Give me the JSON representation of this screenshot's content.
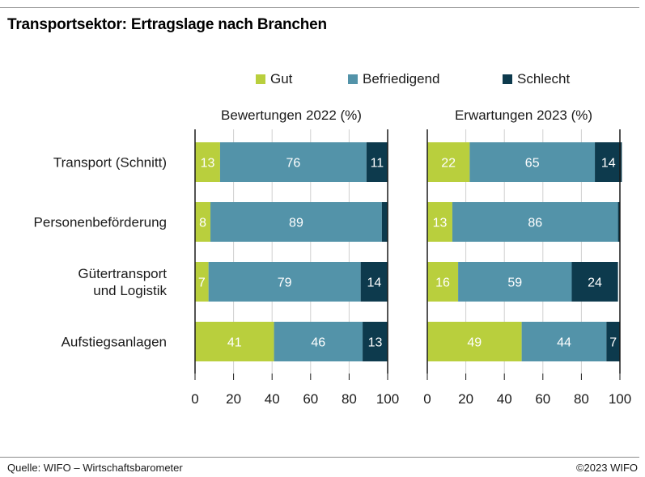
{
  "title": "Transportsektor: Ertragslage nach Branchen",
  "legend": [
    {
      "label": "Gut",
      "color": "#b9cf3d"
    },
    {
      "label": "Befriedigend",
      "color": "#5393a9"
    },
    {
      "label": "Schlecht",
      "color": "#0d3a4d"
    }
  ],
  "footer": {
    "source": "Quelle: WIFO – Wirtschaftsbarometer",
    "copyright": "©2023 WIFO"
  },
  "chart_data": [
    {
      "type": "bar",
      "orientation": "horizontal",
      "stacked": true,
      "title": "Bewertungen 2022 (%)",
      "categories": [
        {
          "lines": [
            "Transport (Schnitt)"
          ]
        },
        {
          "lines": [
            "Personenbeförderung"
          ]
        },
        {
          "lines": [
            "Gütertransport",
            "und Logistik"
          ]
        },
        {
          "lines": [
            "Aufstiegsanlagen"
          ]
        }
      ],
      "series": [
        {
          "name": "Gut",
          "values": [
            13,
            8,
            7,
            41
          ],
          "labels": [
            "13",
            "8",
            "7",
            "41"
          ]
        },
        {
          "name": "Befriedigend",
          "values": [
            76,
            89,
            79,
            46
          ],
          "labels": [
            "76",
            "89",
            "79",
            "46"
          ]
        },
        {
          "name": "Schlecht",
          "values": [
            11,
            3,
            14,
            13
          ],
          "labels": [
            "11",
            "",
            "14",
            "13"
          ]
        }
      ],
      "xlim": [
        0,
        100
      ],
      "xticks": [
        "0",
        "20",
        "40",
        "60",
        "80",
        "100"
      ],
      "grid": true
    },
    {
      "type": "bar",
      "orientation": "horizontal",
      "stacked": true,
      "title": "Erwartungen 2023 (%)",
      "categories": [
        {
          "lines": [
            "Transport (Schnitt)"
          ]
        },
        {
          "lines": [
            "Personenbeförderung"
          ]
        },
        {
          "lines": [
            "Gütertransport",
            "und Logistik"
          ]
        },
        {
          "lines": [
            "Aufstiegsanlagen"
          ]
        }
      ],
      "series": [
        {
          "name": "Gut",
          "values": [
            22,
            13,
            16,
            49
          ],
          "labels": [
            "22",
            "13",
            "16",
            "49"
          ]
        },
        {
          "name": "Befriedigend",
          "values": [
            65,
            86,
            59,
            44
          ],
          "labels": [
            "65",
            "86",
            "59",
            "44"
          ]
        },
        {
          "name": "Schlecht",
          "values": [
            14,
            1,
            24,
            7
          ],
          "labels": [
            "14",
            "",
            "24",
            "7"
          ]
        }
      ],
      "xlim": [
        0,
        100
      ],
      "xticks": [
        "0",
        "20",
        "40",
        "60",
        "80",
        "100"
      ],
      "grid": true
    }
  ]
}
